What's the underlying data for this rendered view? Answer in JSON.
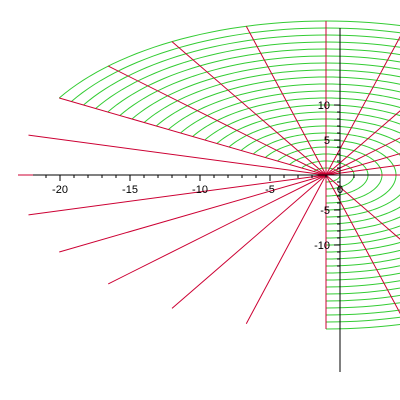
{
  "chart_data": {
    "type": "line",
    "title": "",
    "xlabel": "",
    "ylabel": "",
    "xlim": [
      -22,
      2
    ],
    "ylim": [
      -14,
      10.5
    ],
    "grid": false,
    "x_tick_labels": [
      "-20",
      "-15",
      "-10",
      "-5",
      "0"
    ],
    "y_tick_labels": [
      "10",
      "5",
      "-5",
      "-10"
    ],
    "x_ticks": [
      -20,
      -15,
      -10,
      -5,
      0
    ],
    "y_ticks": [
      10,
      5,
      -5,
      -10
    ],
    "x_minor_ticks": [
      -21,
      -19,
      -18,
      -17,
      -16,
      -14,
      -13,
      -12,
      -11,
      -9,
      -8,
      -7,
      -6,
      -4,
      -3,
      -2,
      -1,
      1
    ],
    "y_minor_ticks": [
      9,
      8,
      7,
      6,
      4,
      3,
      2,
      1,
      -1,
      -2,
      -3,
      -4,
      -6,
      -7,
      -8,
      -9,
      -11,
      -12,
      -13
    ],
    "series": [
      {
        "color": "#cc0033",
        "description_kind": "radial lines (constant angle)",
        "origin": [
          -1,
          0
        ],
        "angles_deg": [
          0,
          15,
          30,
          45,
          60,
          75,
          90,
          105,
          120,
          135,
          150,
          165,
          180,
          195,
          210,
          225,
          240,
          255,
          270,
          285,
          300
        ],
        "radius_range": [
          0,
          22
        ]
      },
      {
        "color": "#33cc33",
        "description_kind": "circular arcs (constant radius)",
        "origin": [
          -1,
          0
        ],
        "radii": [
          1,
          2,
          3,
          4,
          5,
          6,
          7,
          8,
          9,
          10,
          11,
          12,
          13,
          14,
          15,
          16,
          17,
          18,
          19,
          20,
          21,
          22
        ],
        "angle_range_deg": [
          -90,
          150
        ]
      }
    ]
  }
}
